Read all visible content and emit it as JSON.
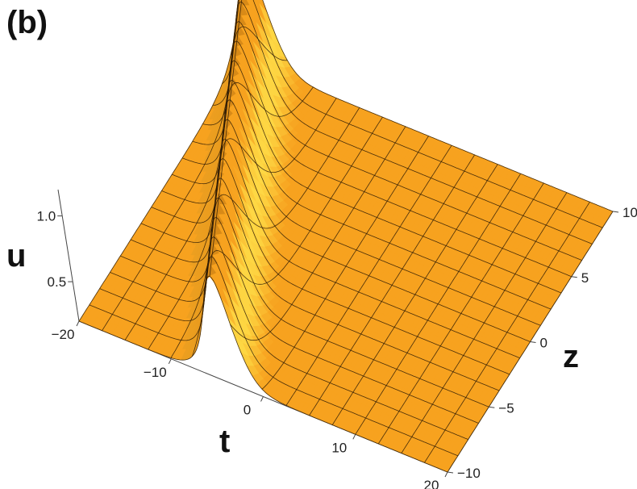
{
  "panel_label": "(b)",
  "chart_data": {
    "type": "surface",
    "title": "",
    "xlabel": "t",
    "ylabel": "z",
    "zlabel": "u",
    "t_range": [
      -20,
      20
    ],
    "z_range": [
      -10,
      10
    ],
    "u_range": [
      0.2,
      1.2
    ],
    "t_ticks": [
      "-20",
      "-10",
      "0",
      "10",
      "20"
    ],
    "z_ticks": [
      "-10",
      "-5",
      "0",
      "5",
      "10"
    ],
    "u_ticks": [
      "0.5",
      "1.0"
    ],
    "u_tick_values": [
      0.5,
      1.0
    ],
    "soliton": {
      "amplitude": 1.0,
      "baseline": 0.2,
      "width": 2.0,
      "center_t_at_z_min": -4,
      "center_t_at_z_max": -18
    },
    "mesh": {
      "t_lines": 16,
      "z_lines": 16
    },
    "colors": {
      "surface_base": "#f7a21f",
      "surface_peak": "#ffe14a",
      "mesh": "#2b1a05"
    }
  }
}
